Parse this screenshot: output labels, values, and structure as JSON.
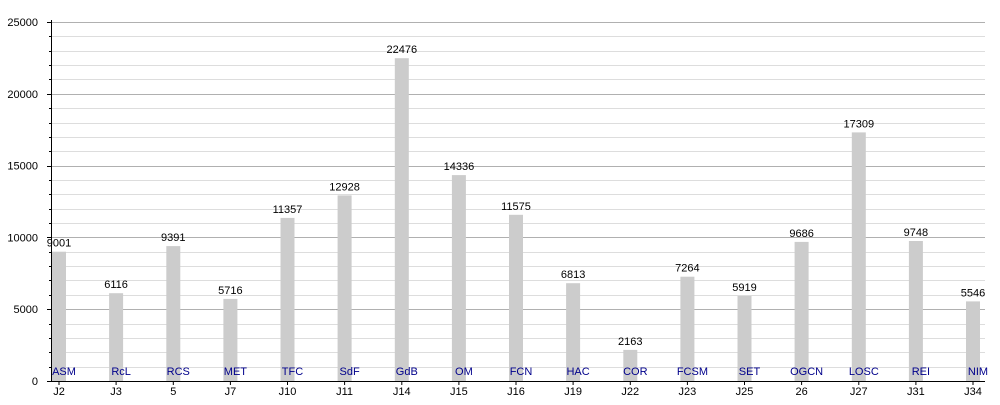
{
  "chart_data": {
    "type": "bar",
    "categories": [
      "J2",
      "J3",
      "5",
      "J7",
      "J10",
      "J11",
      "J14",
      "J15",
      "J16",
      "J19",
      "J22",
      "J23",
      "J25",
      "26",
      "J27",
      "J31",
      "J34"
    ],
    "opponents": [
      "ASM",
      "RcL",
      "RCS",
      "MET",
      "TFC",
      "SdF",
      "GdB",
      "OM",
      "FCN",
      "HAC",
      "COR",
      "FCSM",
      "SET",
      "OGCN",
      "LOSC",
      "REI",
      "NIM"
    ],
    "values": [
      9001,
      6116,
      9391,
      5716,
      11357,
      12928,
      22476,
      14336,
      11575,
      6813,
      2163,
      7264,
      5919,
      9686,
      17309,
      9748,
      5546
    ],
    "title": "",
    "xlabel": "",
    "ylabel": "",
    "ylim": [
      0,
      25000
    ],
    "yticks": [
      0,
      5000,
      10000,
      15000,
      20000,
      25000
    ],
    "grid": true,
    "legend": "none",
    "colors": {
      "bar": "#cccccc",
      "opponent_label": "#00008b",
      "grid_major": "#b0b0b0",
      "grid_minor": "#dddddd",
      "text": "#000000"
    }
  }
}
